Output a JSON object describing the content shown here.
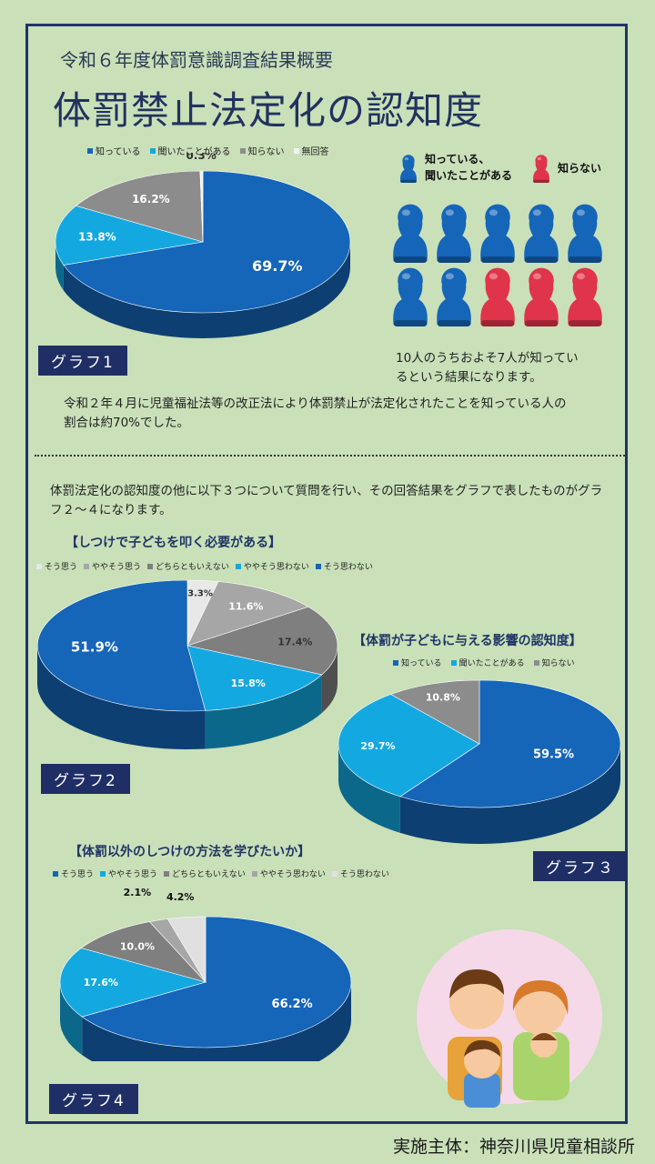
{
  "subtitle": "令和６年度体罰意識調査結果概要",
  "title": "体罰禁止法定化の認知度",
  "colors": {
    "dark_blue": "#1565b8",
    "light_blue": "#14a8e0",
    "gray": "#8c8c8c",
    "light_gray": "#d9d9d9",
    "white": "#f2f2f2",
    "pink_red": "#e0344a",
    "navy": "#1f2f66"
  },
  "pictogram": {
    "legend_know": "知っている、\n聞いたことがある",
    "legend_dont": "知らない",
    "caption": "10人のうちおよそ7人が知ってい\nるという結果になります。"
  },
  "para1": "令和２年４月に児童福祉法等の改正法により体罰禁止が法定化されたことを知っている人の割合は約70%でした。",
  "para2": "体罰法定化の認知度の他に以下３つについて質問を行い、その回答結果をグラフで表したものがグラフ２～４になります。",
  "footer": "実施主体：神奈川県児童相談所",
  "chart_data": [
    {
      "id": "graph1",
      "type": "pie",
      "label_box": "グラフ1",
      "title": "",
      "legend": [
        "知っている",
        "聞いたことがある",
        "知らない",
        "無回答"
      ],
      "values": [
        69.7,
        13.8,
        16.2,
        0.3
      ],
      "value_labels": [
        "69.7%",
        "13.8%",
        "16.2%",
        "0.3%"
      ],
      "colors": [
        "#1565b8",
        "#14a8e0",
        "#8c8c8c",
        "#f2f2f2"
      ]
    },
    {
      "id": "graph2",
      "type": "pie",
      "label_box": "グラフ2",
      "title": "【しつけで子どもを叩く必要がある】",
      "legend": [
        "そう思う",
        "ややそう思う",
        "どちらともいえない",
        "ややそう思わない",
        "そう思わない"
      ],
      "values": [
        3.3,
        11.6,
        17.4,
        15.8,
        51.9
      ],
      "value_labels": [
        "3.3%",
        "11.6%",
        "17.4%",
        "15.8%",
        "51.9%"
      ],
      "colors": [
        "#e8e8e8",
        "#a6a6a6",
        "#7f7f7f",
        "#14a8e0",
        "#1565b8"
      ]
    },
    {
      "id": "graph3",
      "type": "pie",
      "label_box": "グラフ３",
      "title": "【体罰が子どもに与える影響の認知度】",
      "legend": [
        "知っている",
        "聞いたことがある",
        "知らない"
      ],
      "values": [
        59.5,
        29.7,
        10.8
      ],
      "value_labels": [
        "59.5%",
        "29.7%",
        "10.8%"
      ],
      "colors": [
        "#1565b8",
        "#14a8e0",
        "#8c8c8c"
      ]
    },
    {
      "id": "graph4",
      "type": "pie",
      "label_box": "グラフ4",
      "title": "【体罰以外のしつけの方法を学びたいか】",
      "legend": [
        "そう思う",
        "ややそう思う",
        "どちらともいえない",
        "ややそう思わない",
        "そう思わない"
      ],
      "values": [
        66.2,
        17.6,
        10.0,
        2.1,
        4.2
      ],
      "value_labels": [
        "66.2%",
        "17.6%",
        "10.0%",
        "2.1%",
        "4.2%"
      ],
      "colors": [
        "#1565b8",
        "#14a8e0",
        "#7f7f7f",
        "#a6a6a6",
        "#e0e0e0"
      ]
    }
  ]
}
